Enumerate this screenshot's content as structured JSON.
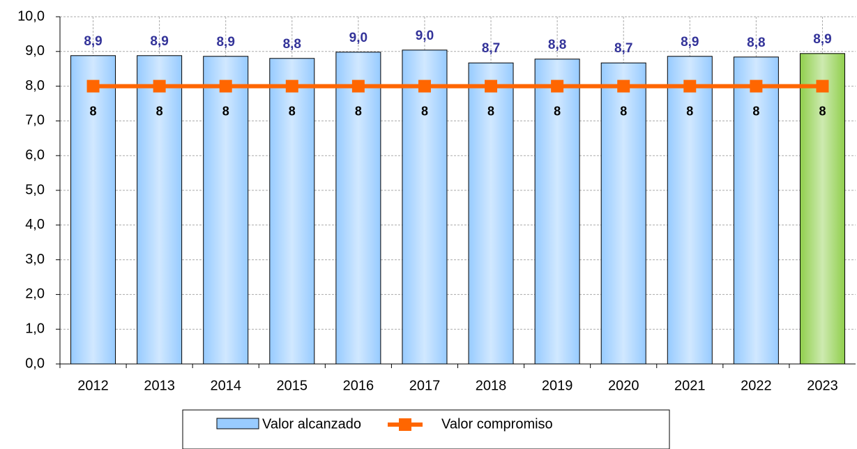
{
  "chart_data": {
    "type": "bar",
    "categories": [
      "2012",
      "2013",
      "2014",
      "2015",
      "2016",
      "2017",
      "2018",
      "2019",
      "2020",
      "2021",
      "2022",
      "2023"
    ],
    "series": [
      {
        "name": "Valor alcanzado",
        "type": "bar",
        "color": "#99ccff",
        "colors": [
          "#99ccff",
          "#99ccff",
          "#99ccff",
          "#99ccff",
          "#99ccff",
          "#99ccff",
          "#99ccff",
          "#99ccff",
          "#99ccff",
          "#99ccff",
          "#99ccff",
          "#92d050"
        ],
        "values": [
          8.88,
          8.88,
          8.86,
          8.8,
          8.98,
          9.04,
          8.67,
          8.78,
          8.67,
          8.86,
          8.84,
          8.94
        ],
        "value_labels": [
          "8,9",
          "8,9",
          "8,9",
          "8,8",
          "9,0",
          "9,0",
          "8,7",
          "8,8",
          "8,7",
          "8,9",
          "8,8",
          "8,9"
        ]
      },
      {
        "name": "Valor compromiso",
        "type": "line",
        "color": "#ff6600",
        "values": [
          8,
          8,
          8,
          8,
          8,
          8,
          8,
          8,
          8,
          8,
          8,
          8
        ]
      }
    ],
    "ylim": [
      0,
      10
    ],
    "yticks": [
      {
        "value": 0,
        "label": "0,0"
      },
      {
        "value": 1,
        "label": "1,0"
      },
      {
        "value": 2,
        "label": "2,0"
      },
      {
        "value": 3,
        "label": "3,0"
      },
      {
        "value": 4,
        "label": "4,0"
      },
      {
        "value": 5,
        "label": "5,0"
      },
      {
        "value": 6,
        "label": "6,0"
      },
      {
        "value": 7,
        "label": "7,0"
      },
      {
        "value": 8,
        "label": "8,0"
      },
      {
        "value": 9,
        "label": "9,0"
      },
      {
        "value": 10,
        "label": "10,0"
      }
    ],
    "grid": true,
    "legend": "bottom"
  }
}
